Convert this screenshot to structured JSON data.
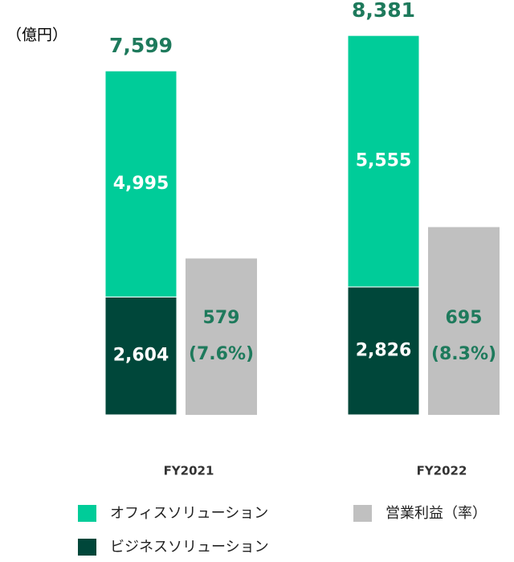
{
  "chart_data": {
    "type": "stacked-bar-with-profit",
    "unit_label": "（億円）",
    "categories": [
      "FY2021",
      "FY2022"
    ],
    "series": [
      {
        "name": "ビジネスソリューション",
        "color": "#00473a",
        "values": [
          2604,
          2826
        ],
        "value_labels": [
          "2,604",
          "2,826"
        ]
      },
      {
        "name": "オフィスソリューション",
        "color": "#00cc99",
        "values": [
          4995,
          5555
        ],
        "value_labels": [
          "4,995",
          "5,555"
        ]
      }
    ],
    "totals": [
      7599,
      8381
    ],
    "total_labels": [
      "7,599",
      "8,381"
    ],
    "profit": {
      "name": "営業利益（率）",
      "color": "#c0c0c0",
      "values": [
        579,
        695
      ],
      "rates": [
        7.6,
        8.3
      ],
      "rate_labels": [
        "(7.6%)",
        "(8.3%)"
      ]
    },
    "label_color": "#1e7a5c"
  }
}
